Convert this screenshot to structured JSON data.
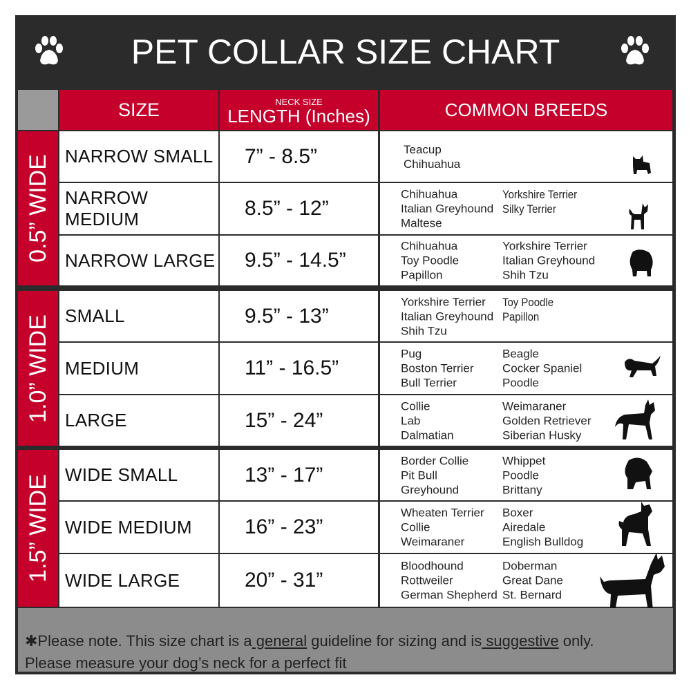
{
  "title": "PET COLLAR SIZE CHART",
  "colors": {
    "red": "#c4002b",
    "dark": "#2b2b2b",
    "grey": "#8c8c8c"
  },
  "headers": {
    "size": "SIZE",
    "length_small": "NECK SIZE",
    "length": "LENGTH (Inches)",
    "breeds": "COMMON BREEDS"
  },
  "groups": [
    {
      "label": "0.5” WIDE",
      "rows": [
        {
          "size": "NARROW SMALL",
          "length": "7” - 8.5”",
          "breeds_left": [
            "Teacup",
            "Chihuahua"
          ],
          "breeds_right": [],
          "icon": "yorkie-silhouette-icon"
        },
        {
          "size": "NARROW MEDIUM",
          "length": "8.5” - 12”",
          "breeds_left": [
            "Chihuahua",
            "Italian Greyhound",
            "Maltese"
          ],
          "breeds_right": [
            "Yorkshire Terrier",
            "Silky Terrier"
          ],
          "icon": "chihuahua-silhouette-icon"
        },
        {
          "size": "NARROW LARGE",
          "length": "9.5” - 14.5”",
          "breeds_left": [
            "Chihuahua",
            "Toy Poodle",
            "Papillon"
          ],
          "breeds_right": [
            "Yorkshire Terrier",
            "Italian Greyhound",
            "Shih Tzu"
          ],
          "icon": "pomeranian-silhouette-icon"
        }
      ]
    },
    {
      "label": "1.0” WIDE",
      "rows": [
        {
          "size": "SMALL",
          "length": "9.5” - 13”",
          "breeds_left": [
            "Yorkshire Terrier",
            "Italian Greyhound",
            "Shih Tzu"
          ],
          "breeds_right": [
            "Toy Poodle",
            "Papillon"
          ],
          "icon": "pomeranian-silhouette-icon"
        },
        {
          "size": "MEDIUM",
          "length": "11” - 16.5”",
          "breeds_left": [
            "Pug",
            "Boston Terrier",
            "Bull Terrier"
          ],
          "breeds_right": [
            "Beagle",
            "Cocker Spaniel",
            "Poodle"
          ],
          "icon": "dachshund-silhouette-icon"
        },
        {
          "size": "LARGE",
          "length": "15” - 24”",
          "breeds_left": [
            "Collie",
            "Lab",
            "Dalmatian"
          ],
          "breeds_right": [
            "Weimaraner",
            "Golden Retriever",
            "Siberian Husky"
          ],
          "icon": "shepherd-silhouette-icon"
        }
      ]
    },
    {
      "label": "1.5” WIDE",
      "rows": [
        {
          "size": "WIDE SMALL",
          "length": "13” - 17”",
          "breeds_left": [
            "Border Collie",
            "Pit Bull",
            "Greyhound"
          ],
          "breeds_right": [
            "Whippet",
            "Poodle",
            "Brittany"
          ],
          "icon": "bulldog-silhouette-icon"
        },
        {
          "size": "WIDE MEDIUM",
          "length": "16” - 23”",
          "breeds_left": [
            "Wheaten Terrier",
            "Collie",
            "Weimaraner"
          ],
          "breeds_right": [
            "Boxer",
            "Airedale",
            "English Bulldog"
          ],
          "icon": "pitbull-silhouette-icon"
        },
        {
          "size": "WIDE LARGE",
          "length": "20” - 31”",
          "breeds_left": [
            "Bloodhound",
            "Rottweiler",
            "German Shepherd"
          ],
          "breeds_right": [
            "Doberman",
            "Great Dane",
            "St. Bernard"
          ],
          "icon": "doberman-silhouette-icon"
        }
      ]
    }
  ],
  "footer": {
    "p1": "✱Please note. This size chart is a",
    "u1": " general",
    "p2": " guideline for sizing and is",
    "u2": " suggestive",
    "p3": " only.",
    "line2": "Please measure your dog’s neck for a perfect fit"
  }
}
